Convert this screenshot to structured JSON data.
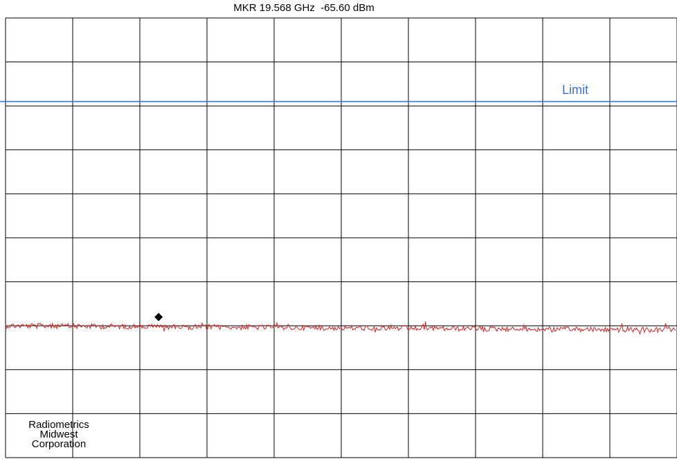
{
  "marker": {
    "readout": "MKR 19.568 GHz  -65.60 dBm"
  },
  "limit": {
    "label": "Limit"
  },
  "watermark": {
    "line1": "Radiometrics",
    "line2": "Midwest",
    "line3": "Corporation"
  },
  "colors": {
    "grid": "#000000",
    "trace": "#e0201e",
    "limit": "#3b6fe0",
    "marker": "#000000"
  },
  "chart_data": {
    "type": "line",
    "grid": true,
    "divisions": {
      "x": 10,
      "y": 10
    },
    "marker": {
      "frequency": "19.568 GHz",
      "level": "-65.60 dBm",
      "x_fraction": 0.228
    },
    "limit_level_fraction": 0.81,
    "trace_level_fraction": 0.3,
    "series": [
      {
        "kind": "trace",
        "noise_fraction": 0.006,
        "slope_fraction": -0.01
      },
      {
        "kind": "limit"
      }
    ]
  }
}
